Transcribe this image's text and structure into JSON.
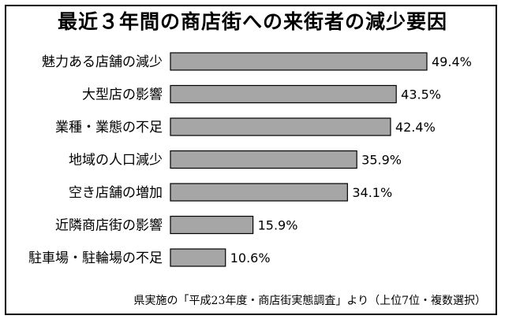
{
  "chart_data": {
    "type": "bar",
    "orientation": "horizontal",
    "title": "最近３年間の商店街への来街者の減少要因",
    "categories": [
      "魅力ある店舗の減少",
      "大型店の影響",
      "業種・業態の不足",
      "地域の人口減少",
      "空き店舗の増加",
      "近隣商店街の影響",
      "駐車場・駐輪場の不足"
    ],
    "values": [
      49.4,
      43.5,
      42.4,
      35.9,
      34.1,
      15.9,
      10.6
    ],
    "value_labels": [
      "49.4%",
      "43.5%",
      "42.4%",
      "35.9%",
      "34.1%",
      "15.9%",
      "10.6%"
    ],
    "xlim": [
      0,
      49.4
    ],
    "grid": false,
    "bar_color": "#a6a6a6"
  },
  "source_note": "県実施の「平成23年度・商店街実態調査」より（上位7位・複数選択）"
}
